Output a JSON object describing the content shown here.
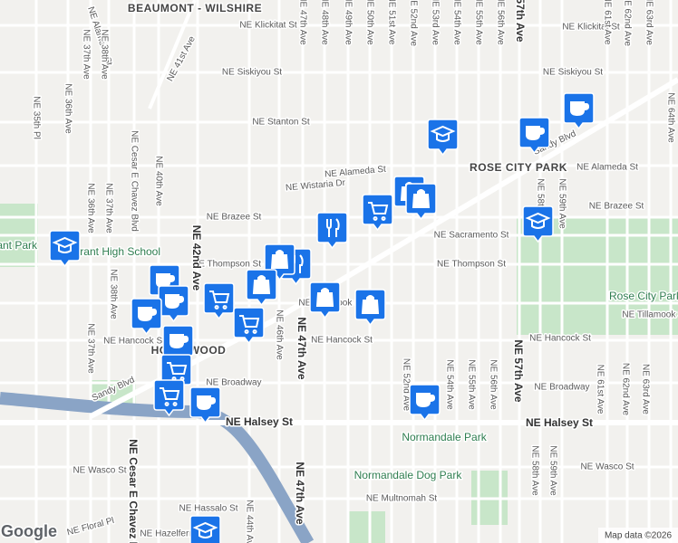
{
  "neighborhoods": [
    "BEAUMONT - WILSHIRE",
    "ROSE CITY PARK",
    "HOLLYWOOD"
  ],
  "places": [
    "Grant Park",
    "Grant High School",
    "Rose City Park",
    "Normandale Park",
    "Normandale Dog Park"
  ],
  "streets": [
    "NE Klickitat St",
    "NE Klickitat St",
    "NE Siskiyou St",
    "NE Siskiyou St",
    "NE Stanton St",
    "NE Alameda St",
    "NE Alameda St",
    "NE Wistaria Dr",
    "NE Brazee St",
    "NE Brazee St",
    "NE Sacramento St",
    "NE Thompson St",
    "NE Thompson St",
    "NE Tillamook St",
    "NE Tillamook St",
    "NE Hancock St",
    "NE Hancock St",
    "NE Hancock St",
    "NE Broadway",
    "NE Broadway",
    "NE Halsey St",
    "NE Halsey St",
    "NE Wasco St",
    "NE Wasco St",
    "NE Hassalo St",
    "NE Multnomah St",
    "NE Hazelfern Pl",
    "NE Floral Pl",
    "Sandy Blvd",
    "Sandy Blvd",
    "NE 41st Ave",
    "NE Alameda St",
    "NE 35th Pl",
    "NE 36th Ave",
    "NE 37th Ave",
    "NE 38th Ave",
    "NE 36th Ave",
    "NE 37th Ave",
    "NE 40th Ave",
    "NE Cesar E Chavez Blvd",
    "NE 38th Ave",
    "NE 37th Ave",
    "NE 42nd Ave",
    "NE 46th Ave",
    "NE 47th Ave",
    "NE 47th Ave",
    "NE 48th Ave",
    "NE 49th Ave",
    "NE 50th Ave",
    "NE 51st Ave",
    "NE 52nd Ave",
    "NE 53rd Ave",
    "NE 54th Ave",
    "NE 55th Ave",
    "NE 56th Ave",
    "NE 57th Ave",
    "NE 61st Ave",
    "NE 62nd Ave",
    "NE 63rd Ave",
    "NE 64th Ave",
    "NE 58th Ave",
    "NE 59th Ave",
    "NE 52nd Ave",
    "NE 54th Ave",
    "NE 55th Ave",
    "NE 56th Ave",
    "NE 57th Ave",
    "NE 58th Ave",
    "NE 59th Ave",
    "NE 61st Ave",
    "NE 62nd Ave",
    "NE 63rd Ave",
    "NE Cesar E Chavez Blvd",
    "NE 47th Ave",
    "NE 44th Ave"
  ],
  "footer": {
    "logo": "Google",
    "attribution": "Map data ©2026"
  }
}
